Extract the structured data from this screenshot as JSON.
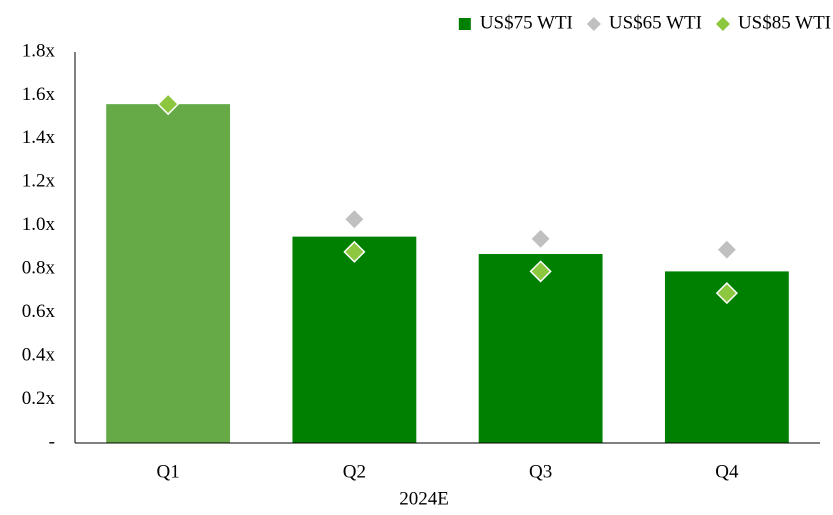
{
  "chart_data": {
    "type": "bar",
    "x_label": "2024E",
    "categories": [
      "Q1",
      "Q2",
      "Q3",
      "Q4"
    ],
    "series": [
      {
        "name": "US$75 WTI",
        "type": "bar",
        "color": "#008000",
        "colors": [
          "#66aa47",
          "#008000",
          "#008000",
          "#008000"
        ],
        "values": [
          1.56,
          0.95,
          0.87,
          0.79
        ]
      },
      {
        "name": "US$65 WTI",
        "type": "diamond",
        "color": "#c0c0c0",
        "values": [
          null,
          1.03,
          0.94,
          0.89
        ]
      },
      {
        "name": "US$85 WTI",
        "type": "diamond",
        "color": "#8dc63f",
        "values": [
          1.56,
          0.88,
          0.79,
          0.69
        ]
      }
    ],
    "ylim": [
      0,
      1.8
    ],
    "yticks": [
      {
        "value": 0,
        "label": "-"
      },
      {
        "value": 0.2,
        "label": "0.2x"
      },
      {
        "value": 0.4,
        "label": "0.4x"
      },
      {
        "value": 0.6,
        "label": "0.6x"
      },
      {
        "value": 0.8,
        "label": "0.8x"
      },
      {
        "value": 1.0,
        "label": "1.0x"
      },
      {
        "value": 1.2,
        "label": "1.2x"
      },
      {
        "value": 1.4,
        "label": "1.4x"
      },
      {
        "value": 1.6,
        "label": "1.6x"
      },
      {
        "value": 1.8,
        "label": "1.8x"
      }
    ],
    "grid": false,
    "legend": "top-right"
  }
}
